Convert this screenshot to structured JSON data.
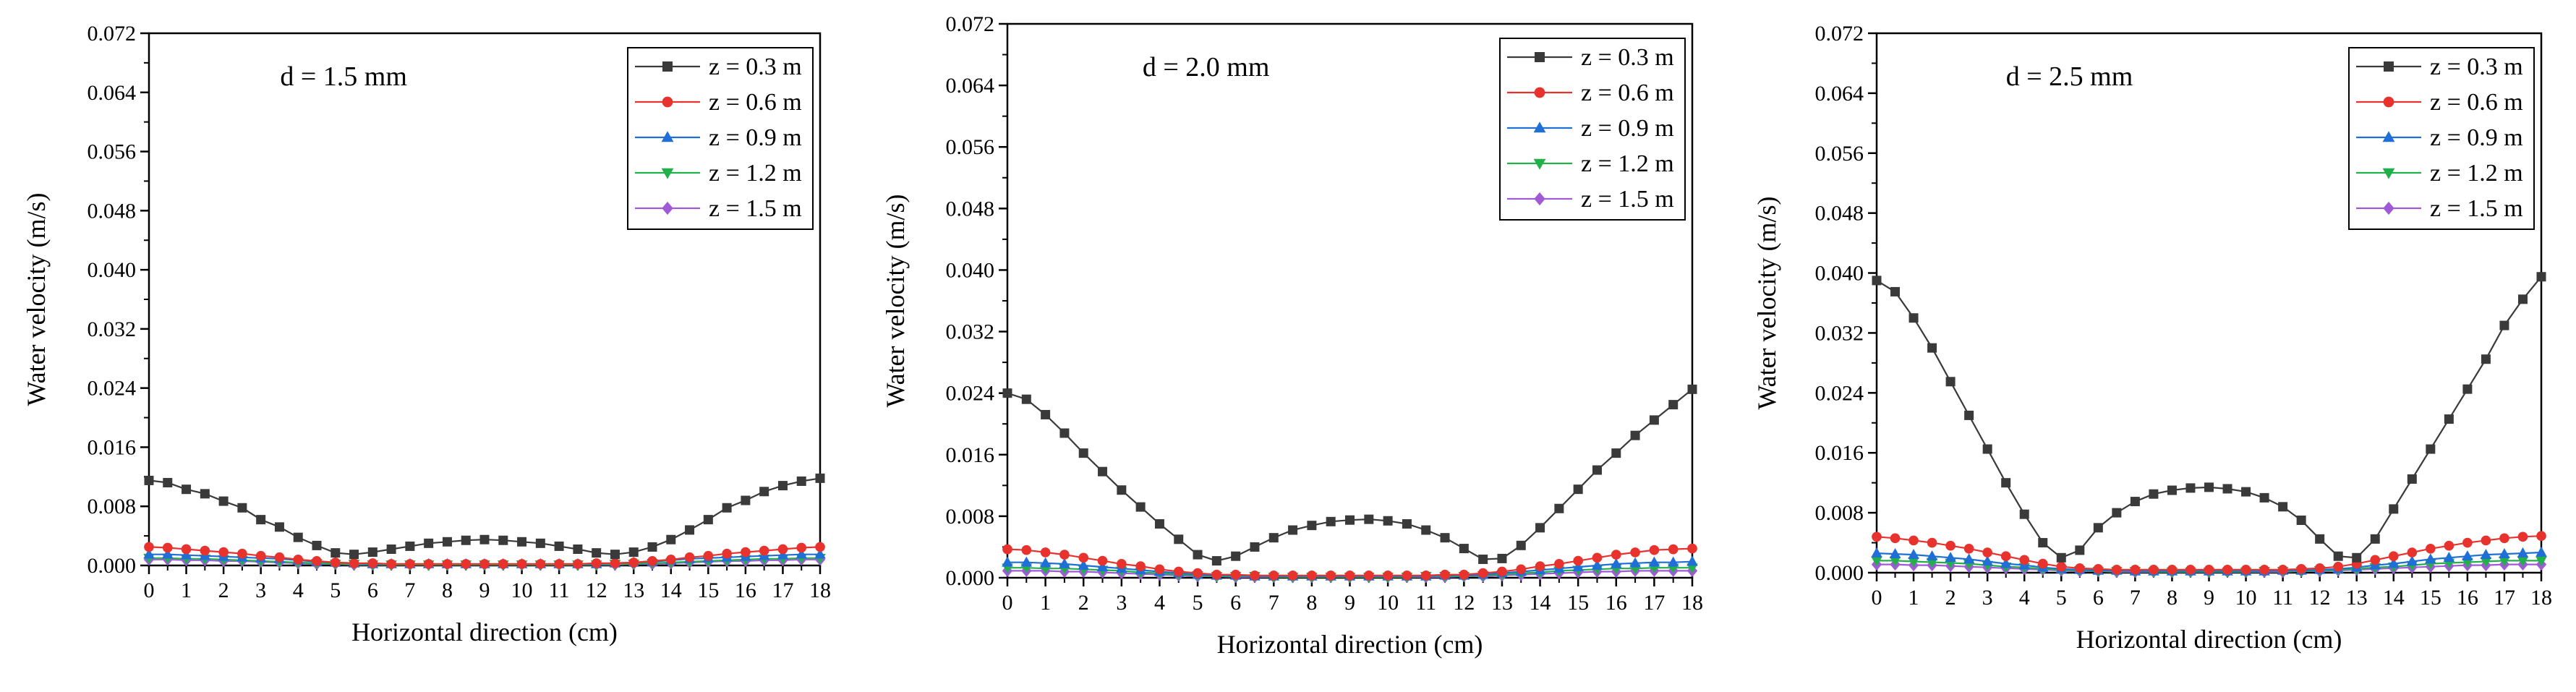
{
  "chart_data": [
    {
      "type": "line",
      "title": "d = 1.5 mm",
      "xlabel": "Horizontal direction (cm)",
      "ylabel": "Water velocity (m/s)",
      "xlim": [
        0,
        18
      ],
      "ylim": [
        0,
        0.072
      ],
      "x_ticks": [
        "0",
        "1",
        "2",
        "3",
        "4",
        "5",
        "6",
        "7",
        "8",
        "9",
        "10",
        "11",
        "12",
        "13",
        "14",
        "15",
        "16",
        "17",
        "18"
      ],
      "y_ticks": [
        "0.000",
        "0.008",
        "0.016",
        "0.024",
        "0.032",
        "0.040",
        "0.048",
        "0.056",
        "0.064",
        "0.072"
      ],
      "legend": "top-right",
      "x": [
        0,
        0.5,
        1,
        1.5,
        2,
        2.5,
        3,
        3.5,
        4,
        4.5,
        5,
        5.5,
        6,
        6.5,
        7,
        7.5,
        8,
        8.5,
        9,
        9.5,
        10,
        10.5,
        11,
        11.5,
        12,
        12.5,
        13,
        13.5,
        14,
        14.5,
        15,
        15.5,
        16,
        16.5,
        17,
        17.5,
        18
      ],
      "series": [
        {
          "name": "z = 0.3 m",
          "color": "#3a3a3a",
          "marker": "square",
          "values": [
            0.0115,
            0.0112,
            0.0103,
            0.0097,
            0.0087,
            0.0078,
            0.0062,
            0.0052,
            0.0038,
            0.0027,
            0.0017,
            0.0015,
            0.0018,
            0.0022,
            0.0026,
            0.003,
            0.0032,
            0.0034,
            0.0035,
            0.0034,
            0.0032,
            0.003,
            0.0026,
            0.0022,
            0.0017,
            0.0015,
            0.0018,
            0.0025,
            0.0035,
            0.0048,
            0.0062,
            0.0078,
            0.0088,
            0.01,
            0.0108,
            0.0114,
            0.0118
          ]
        },
        {
          "name": "z = 0.6 m",
          "color": "#e8322e",
          "marker": "circle",
          "values": [
            0.0025,
            0.0024,
            0.0022,
            0.002,
            0.0018,
            0.0016,
            0.0013,
            0.0011,
            0.0008,
            0.0006,
            0.0004,
            0.0003,
            0.0003,
            0.0002,
            0.0002,
            0.0002,
            0.0002,
            0.0002,
            0.0002,
            0.0002,
            0.0002,
            0.0002,
            0.0002,
            0.0002,
            0.0003,
            0.0003,
            0.0004,
            0.0006,
            0.0008,
            0.0011,
            0.0013,
            0.0016,
            0.0018,
            0.002,
            0.0022,
            0.0024,
            0.0025
          ]
        },
        {
          "name": "z = 0.9 m",
          "color": "#1f6fd6",
          "marker": "triangle-up",
          "values": [
            0.0015,
            0.0015,
            0.0014,
            0.0013,
            0.0012,
            0.0011,
            0.001,
            0.0009,
            0.0007,
            0.0005,
            0.0004,
            0.0003,
            0.0002,
            0.0002,
            0.0002,
            0.0002,
            0.0002,
            0.0002,
            0.0002,
            0.0002,
            0.0002,
            0.0002,
            0.0002,
            0.0002,
            0.0002,
            0.0003,
            0.0004,
            0.0005,
            0.0007,
            0.0009,
            0.001,
            0.0011,
            0.0012,
            0.0013,
            0.0014,
            0.0015,
            0.0015
          ]
        },
        {
          "name": "z = 1.2 m",
          "color": "#22b04a",
          "marker": "triangle-down",
          "values": [
            0.001,
            0.001,
            0.0009,
            0.0009,
            0.0008,
            0.0007,
            0.0006,
            0.0005,
            0.0004,
            0.0003,
            0.0002,
            0.0002,
            0.0001,
            0.0001,
            0.0001,
            0.0001,
            0.0001,
            0.0001,
            0.0001,
            0.0001,
            0.0001,
            0.0001,
            0.0001,
            0.0001,
            0.0001,
            0.0002,
            0.0002,
            0.0003,
            0.0004,
            0.0005,
            0.0006,
            0.0007,
            0.0008,
            0.0009,
            0.0009,
            0.001,
            0.001
          ]
        },
        {
          "name": "z = 1.5 m",
          "color": "#a05ad8",
          "marker": "diamond",
          "values": [
            0.0008,
            0.0008,
            0.0007,
            0.0007,
            0.0006,
            0.0006,
            0.0005,
            0.0004,
            0.0003,
            0.0002,
            0.0002,
            0.0001,
            0.0001,
            0.0001,
            0.0001,
            0.0001,
            0.0001,
            0.0001,
            0.0001,
            0.0001,
            0.0001,
            0.0001,
            0.0001,
            0.0001,
            0.0001,
            0.0001,
            0.0002,
            0.0002,
            0.0003,
            0.0004,
            0.0005,
            0.0006,
            0.0006,
            0.0007,
            0.0007,
            0.0008,
            0.0008
          ]
        }
      ]
    },
    {
      "type": "line",
      "title": "d = 2.0 mm",
      "xlabel": "Horizontal direction (cm)",
      "ylabel": "Water velocity (m/s)",
      "xlim": [
        0,
        18
      ],
      "ylim": [
        0,
        0.072
      ],
      "x_ticks": [
        "0",
        "1",
        "2",
        "3",
        "4",
        "5",
        "6",
        "7",
        "8",
        "9",
        "10",
        "11",
        "12",
        "13",
        "14",
        "15",
        "16",
        "17",
        "18"
      ],
      "y_ticks": [
        "0.000",
        "0.008",
        "0.016",
        "0.024",
        "0.032",
        "0.040",
        "0.048",
        "0.056",
        "0.064",
        "0.072"
      ],
      "legend": "top-right",
      "x": [
        0,
        0.5,
        1,
        1.5,
        2,
        2.5,
        3,
        3.5,
        4,
        4.5,
        5,
        5.5,
        6,
        6.5,
        7,
        7.5,
        8,
        8.5,
        9,
        9.5,
        10,
        10.5,
        11,
        11.5,
        12,
        12.5,
        13,
        13.5,
        14,
        14.5,
        15,
        15.5,
        16,
        16.5,
        17,
        17.5,
        18
      ],
      "series": [
        {
          "name": "z = 0.3 m",
          "color": "#3a3a3a",
          "marker": "square",
          "values": [
            0.024,
            0.0232,
            0.0212,
            0.0188,
            0.0162,
            0.0138,
            0.0114,
            0.0092,
            0.007,
            0.005,
            0.003,
            0.0022,
            0.0028,
            0.004,
            0.0052,
            0.0062,
            0.0068,
            0.0073,
            0.0075,
            0.0076,
            0.0074,
            0.007,
            0.0062,
            0.0052,
            0.0038,
            0.0024,
            0.0025,
            0.0042,
            0.0065,
            0.009,
            0.0115,
            0.014,
            0.0162,
            0.0185,
            0.0205,
            0.0225,
            0.0245
          ]
        },
        {
          "name": "z = 0.6 m",
          "color": "#e8322e",
          "marker": "circle",
          "values": [
            0.0037,
            0.0036,
            0.0033,
            0.003,
            0.0026,
            0.0022,
            0.0018,
            0.0015,
            0.0011,
            0.0008,
            0.0006,
            0.0004,
            0.0004,
            0.0003,
            0.0003,
            0.0003,
            0.0003,
            0.0003,
            0.0003,
            0.0003,
            0.0003,
            0.0003,
            0.0003,
            0.0004,
            0.0004,
            0.0006,
            0.0008,
            0.0011,
            0.0015,
            0.0018,
            0.0022,
            0.0026,
            0.003,
            0.0033,
            0.0036,
            0.0037,
            0.0038
          ]
        },
        {
          "name": "z = 0.9 m",
          "color": "#1f6fd6",
          "marker": "triangle-up",
          "values": [
            0.002,
            0.002,
            0.0019,
            0.0018,
            0.0016,
            0.0014,
            0.0012,
            0.001,
            0.0008,
            0.0006,
            0.0004,
            0.0003,
            0.0003,
            0.0002,
            0.0002,
            0.0002,
            0.0002,
            0.0002,
            0.0002,
            0.0002,
            0.0002,
            0.0002,
            0.0002,
            0.0003,
            0.0003,
            0.0004,
            0.0006,
            0.0008,
            0.001,
            0.0012,
            0.0014,
            0.0016,
            0.0018,
            0.0019,
            0.002,
            0.002,
            0.0021
          ]
        },
        {
          "name": "z = 1.2 m",
          "color": "#22b04a",
          "marker": "triangle-down",
          "values": [
            0.0013,
            0.0013,
            0.0012,
            0.0012,
            0.0011,
            0.001,
            0.0009,
            0.0007,
            0.0006,
            0.0004,
            0.0003,
            0.0002,
            0.0002,
            0.0002,
            0.0001,
            0.0001,
            0.0001,
            0.0001,
            0.0001,
            0.0001,
            0.0001,
            0.0001,
            0.0002,
            0.0002,
            0.0002,
            0.0003,
            0.0004,
            0.0006,
            0.0007,
            0.0009,
            0.001,
            0.0011,
            0.0012,
            0.0012,
            0.0013,
            0.0013,
            0.0013
          ]
        },
        {
          "name": "z = 1.5 m",
          "color": "#a05ad8",
          "marker": "diamond",
          "values": [
            0.0009,
            0.0009,
            0.0009,
            0.0008,
            0.0008,
            0.0007,
            0.0006,
            0.0005,
            0.0004,
            0.0003,
            0.0002,
            0.0002,
            0.0001,
            0.0001,
            0.0001,
            0.0001,
            0.0001,
            0.0001,
            0.0001,
            0.0001,
            0.0001,
            0.0001,
            0.0001,
            0.0001,
            0.0002,
            0.0002,
            0.0003,
            0.0004,
            0.0005,
            0.0006,
            0.0007,
            0.0008,
            0.0008,
            0.0009,
            0.0009,
            0.0009,
            0.0009
          ]
        }
      ]
    },
    {
      "type": "line",
      "title": "d = 2.5 mm",
      "xlabel": "Horizontal direction (cm)",
      "ylabel": "Water velocity (m/s)",
      "xlim": [
        0,
        18
      ],
      "ylim": [
        0,
        0.072
      ],
      "x_ticks": [
        "0",
        "1",
        "2",
        "3",
        "4",
        "5",
        "6",
        "7",
        "8",
        "9",
        "10",
        "11",
        "12",
        "13",
        "14",
        "15",
        "16",
        "17",
        "18"
      ],
      "y_ticks": [
        "0.000",
        "0.008",
        "0.016",
        "0.024",
        "0.032",
        "0.040",
        "0.048",
        "0.056",
        "0.064",
        "0.072"
      ],
      "legend": "top-right",
      "x": [
        0,
        0.5,
        1,
        1.5,
        2,
        2.5,
        3,
        3.5,
        4,
        4.5,
        5,
        5.5,
        6,
        6.5,
        7,
        7.5,
        8,
        8.5,
        9,
        9.5,
        10,
        10.5,
        11,
        11.5,
        12,
        12.5,
        13,
        13.5,
        14,
        14.5,
        15,
        15.5,
        16,
        16.5,
        17,
        17.5,
        18
      ],
      "series": [
        {
          "name": "z = 0.3 m",
          "color": "#3a3a3a",
          "marker": "square",
          "values": [
            0.039,
            0.0375,
            0.034,
            0.03,
            0.0255,
            0.021,
            0.0165,
            0.012,
            0.0078,
            0.004,
            0.002,
            0.003,
            0.006,
            0.008,
            0.0095,
            0.0105,
            0.011,
            0.0113,
            0.0114,
            0.0112,
            0.0108,
            0.01,
            0.0088,
            0.007,
            0.0045,
            0.0022,
            0.002,
            0.0045,
            0.0085,
            0.0125,
            0.0165,
            0.0205,
            0.0245,
            0.0285,
            0.033,
            0.0365,
            0.0395
          ]
        },
        {
          "name": "z = 0.6 m",
          "color": "#e8322e",
          "marker": "circle",
          "values": [
            0.0048,
            0.0046,
            0.0043,
            0.004,
            0.0036,
            0.0032,
            0.0027,
            0.0022,
            0.0017,
            0.0012,
            0.0008,
            0.0006,
            0.0005,
            0.0004,
            0.0004,
            0.0004,
            0.0004,
            0.0004,
            0.0004,
            0.0004,
            0.0004,
            0.0004,
            0.0004,
            0.0005,
            0.0006,
            0.0008,
            0.0012,
            0.0017,
            0.0022,
            0.0027,
            0.0032,
            0.0036,
            0.004,
            0.0043,
            0.0046,
            0.0048,
            0.0049
          ]
        },
        {
          "name": "z = 0.9 m",
          "color": "#1f6fd6",
          "marker": "triangle-up",
          "values": [
            0.0026,
            0.0025,
            0.0024,
            0.0022,
            0.002,
            0.0018,
            0.0015,
            0.0012,
            0.001,
            0.0007,
            0.0005,
            0.0004,
            0.0003,
            0.0003,
            0.0002,
            0.0002,
            0.0002,
            0.0002,
            0.0002,
            0.0002,
            0.0002,
            0.0002,
            0.0003,
            0.0003,
            0.0004,
            0.0005,
            0.0007,
            0.001,
            0.0012,
            0.0015,
            0.0018,
            0.002,
            0.0022,
            0.0024,
            0.0025,
            0.0026,
            0.0027
          ]
        },
        {
          "name": "z = 1.2 m",
          "color": "#22b04a",
          "marker": "triangle-down",
          "values": [
            0.0016,
            0.0016,
            0.0015,
            0.0014,
            0.0013,
            0.0012,
            0.001,
            0.0008,
            0.0007,
            0.0005,
            0.0004,
            0.0003,
            0.0002,
            0.0002,
            0.0002,
            0.0001,
            0.0001,
            0.0001,
            0.0001,
            0.0001,
            0.0001,
            0.0002,
            0.0002,
            0.0002,
            0.0003,
            0.0004,
            0.0005,
            0.0007,
            0.0008,
            0.001,
            0.0012,
            0.0013,
            0.0014,
            0.0015,
            0.0016,
            0.0016,
            0.0016
          ]
        },
        {
          "name": "z = 1.5 m",
          "color": "#a05ad8",
          "marker": "diamond",
          "values": [
            0.0011,
            0.0011,
            0.001,
            0.001,
            0.0009,
            0.0008,
            0.0007,
            0.0006,
            0.0005,
            0.0004,
            0.0003,
            0.0002,
            0.0002,
            0.0001,
            0.0001,
            0.0001,
            0.0001,
            0.0001,
            0.0001,
            0.0001,
            0.0001,
            0.0001,
            0.0001,
            0.0002,
            0.0002,
            0.0003,
            0.0004,
            0.0005,
            0.0006,
            0.0007,
            0.0008,
            0.0009,
            0.001,
            0.001,
            0.0011,
            0.0011,
            0.0011
          ]
        }
      ]
    }
  ]
}
